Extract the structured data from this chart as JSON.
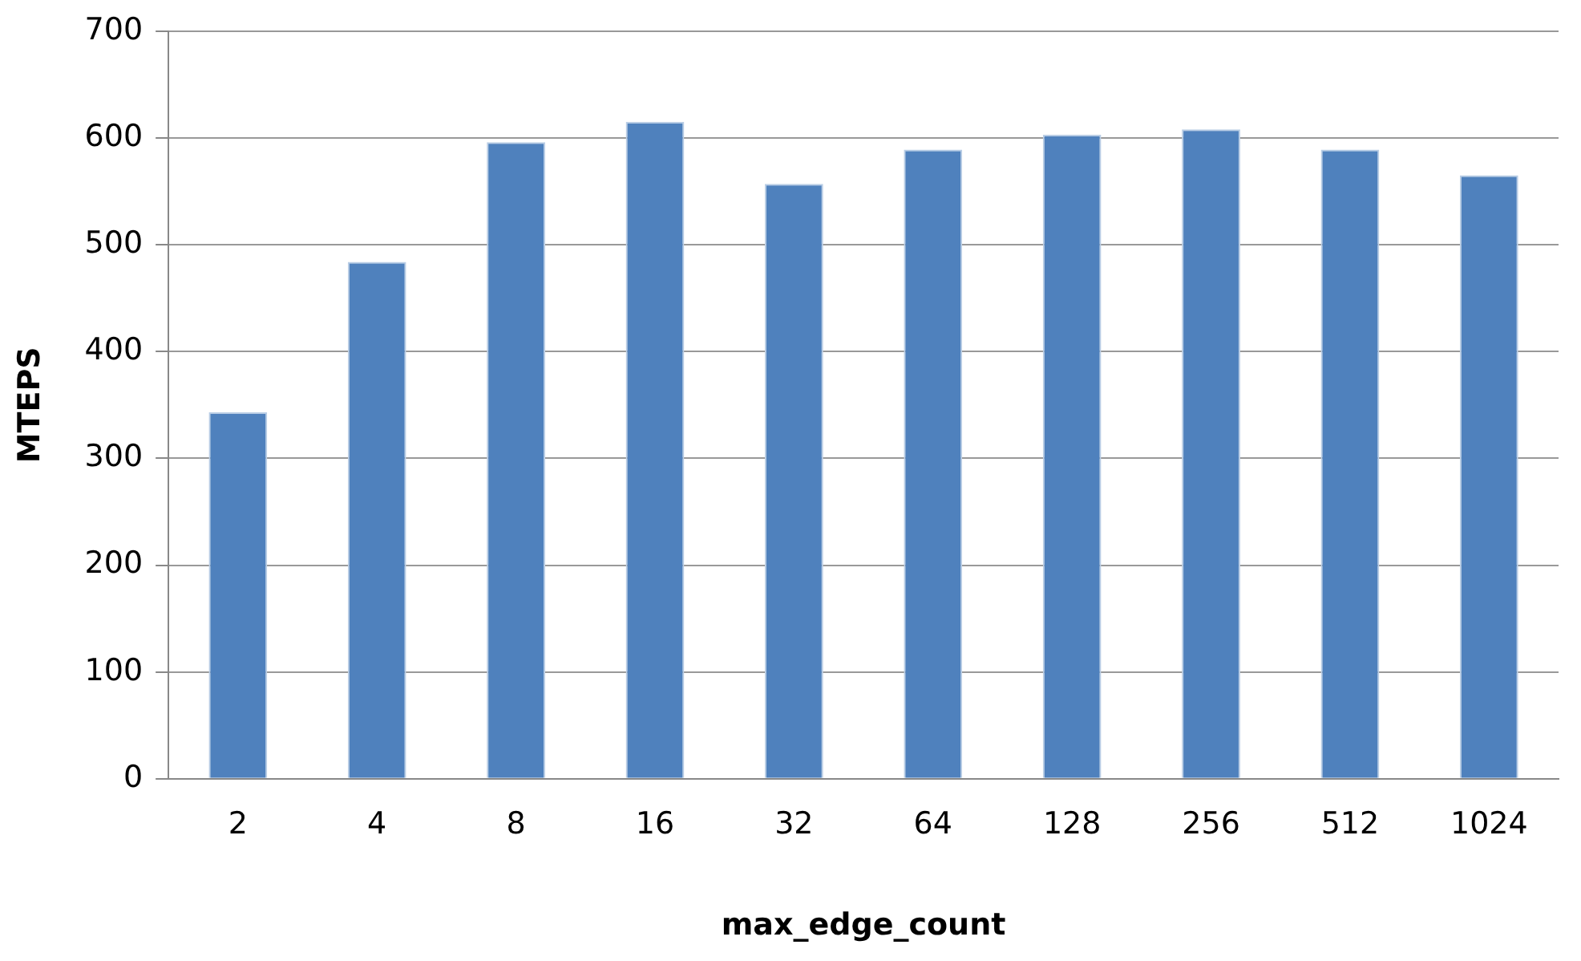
{
  "chart_data": {
    "type": "bar",
    "xlabel": "max_edge_count",
    "ylabel": "MTEPS",
    "categories": [
      "2",
      "4",
      "8",
      "16",
      "32",
      "64",
      "128",
      "256",
      "512",
      "1024"
    ],
    "values": [
      343,
      484,
      596,
      615,
      557,
      589,
      603,
      608,
      589,
      565
    ],
    "color": "#4f81bd",
    "ylim": [
      0,
      700
    ],
    "yticks": [
      0,
      100,
      200,
      300,
      400,
      500,
      600,
      700
    ],
    "grid": "y",
    "legend": false
  }
}
